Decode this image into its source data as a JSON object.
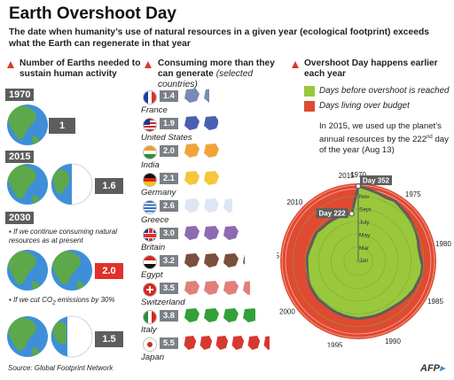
{
  "header": {
    "title": "Earth Overshoot Day",
    "subtitle": "The date when humanity’s use of natural resources in a given year (ecological footprint) exceeds what the Earth can regenerate in that year"
  },
  "col1": {
    "heading": "Number of Earths needed to sustain human activity",
    "rows": [
      {
        "year": "1970",
        "earths": "1"
      },
      {
        "year": "2015",
        "earths": "1.6"
      },
      {
        "year": "2030",
        "note": "If we continue consuming natural resources as at present",
        "earths": "2.0"
      },
      {
        "note_a": "If we cut CO",
        "note_sub": "2",
        "note_b": " emissions by 30%",
        "earths": "1.5"
      }
    ]
  },
  "col2": {
    "heading": "Consuming more than they can generate",
    "subheading": "(selected countries)",
    "countries": [
      {
        "name": "France",
        "value": "1.4",
        "flag": "france-flag-icon",
        "shape": "france-map-icon"
      },
      {
        "name": "United States",
        "value": "1.9",
        "flag": "usa-flag-icon",
        "shape": "usa-map-icon"
      },
      {
        "name": "India",
        "value": "2.0",
        "flag": "india-flag-icon",
        "shape": "india-map-icon"
      },
      {
        "name": "Germany",
        "value": "2.1",
        "flag": "germany-flag-icon",
        "shape": "germany-map-icon"
      },
      {
        "name": "Greece",
        "value": "2.6",
        "flag": "greece-flag-icon",
        "shape": "greece-map-icon"
      },
      {
        "name": "Britain",
        "value": "3.0",
        "flag": "britain-flag-icon",
        "shape": "britain-map-icon"
      },
      {
        "name": "Egypt",
        "value": "3.2",
        "flag": "egypt-flag-icon",
        "shape": "egypt-map-icon"
      },
      {
        "name": "Switzerland",
        "value": "3.5",
        "flag": "switzerland-flag-icon",
        "shape": "switzerland-map-icon"
      },
      {
        "name": "Italy",
        "value": "3.8",
        "flag": "italy-flag-icon",
        "shape": "italy-map-icon"
      },
      {
        "name": "Japan",
        "value": "5.5",
        "flag": "japan-flag-icon",
        "shape": "japan-map-icon"
      }
    ],
    "shape_colors": [
      "#7a8ab8",
      "#4a5fb0",
      "#f2a43a",
      "#f6c63c",
      "#dde6f2",
      "#8c6bb0",
      "#7a4f3b",
      "#e0807a",
      "#33a03a",
      "#d43a30"
    ]
  },
  "col3": {
    "heading": "Overshoot Day happens earlier each year",
    "legend": [
      {
        "label": "Days before overshoot is reached",
        "color": "#9ac83c"
      },
      {
        "label": "Days living over budget",
        "color": "#e04a32"
      }
    ],
    "note_a": "In 2015, we used up the planet’s annual resources by the 222",
    "note_sup": "nd",
    "note_b": "day of the year (Aug 13)"
  },
  "chart_data": {
    "type": "radial area",
    "title": "Overshoot Day happens earlier each year",
    "x": [
      1970,
      1971,
      1972,
      1973,
      1974,
      1975,
      1976,
      1977,
      1978,
      1979,
      1980,
      1981,
      1982,
      1983,
      1984,
      1985,
      1986,
      1987,
      1988,
      1989,
      1990,
      1991,
      1992,
      1993,
      1994,
      1995,
      1996,
      1997,
      1998,
      1999,
      2000,
      2001,
      2002,
      2003,
      2004,
      2005,
      2006,
      2007,
      2008,
      2009,
      2010,
      2011,
      2012,
      2013,
      2014,
      2015
    ],
    "values": [
      352,
      340,
      332,
      324,
      330,
      320,
      315,
      307,
      302,
      295,
      287,
      290,
      300,
      300,
      293,
      290,
      282,
      275,
      268,
      265,
      265,
      265,
      264,
      266,
      263,
      260,
      258,
      255,
      253,
      255,
      252,
      250,
      245,
      240,
      237,
      238,
      234,
      230,
      231,
      234,
      227,
      226,
      225,
      224,
      223,
      222
    ],
    "series": [
      {
        "name": "Days before overshoot is reached",
        "color": "#9ac83c"
      },
      {
        "name": "Days living over budget",
        "color": "#e04a32"
      }
    ],
    "year_labels": [
      "1970",
      "1975",
      "1980",
      "1985",
      "1990",
      "1995",
      "2000",
      "2005",
      "2010",
      "2015"
    ],
    "month_labels": [
      "Nov",
      "Sept",
      "July",
      "May",
      "Mar",
      "Jan"
    ],
    "month_days": [
      305,
      244,
      182,
      121,
      60,
      1
    ],
    "callouts": [
      {
        "label": "Day 352",
        "year": 1970,
        "value": 352
      },
      {
        "label": "Day 222",
        "year": 2015,
        "value": 222
      }
    ],
    "ylim": [
      0,
      365
    ]
  },
  "footer": {
    "source": "Source: Global Footprint Network",
    "credit": "AFP"
  }
}
